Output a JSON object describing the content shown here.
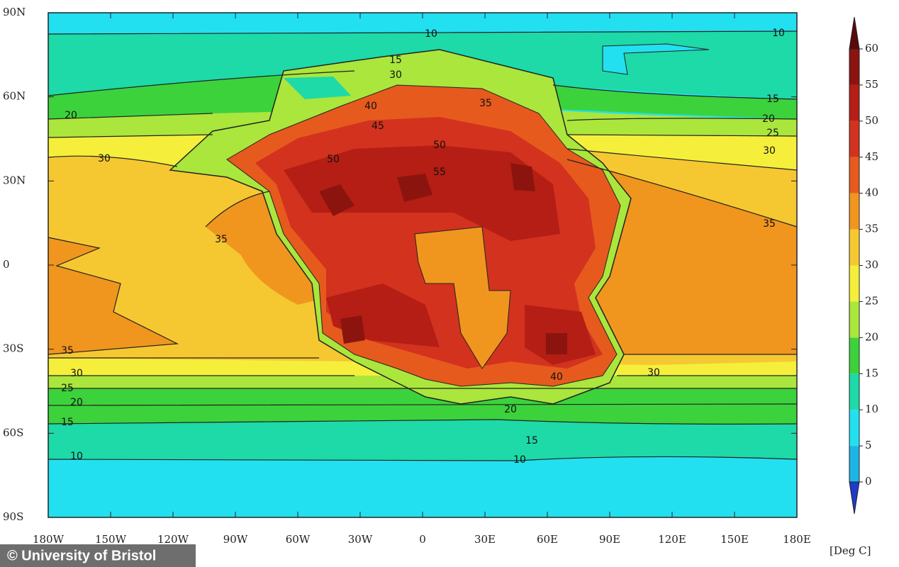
{
  "map": {
    "lat_labels": [
      "90N",
      "60N",
      "30N",
      "0",
      "30S",
      "60S",
      "90S"
    ],
    "lon_labels": [
      "180W",
      "150W",
      "120W",
      "90W",
      "60W",
      "30W",
      "0",
      "30E",
      "60E",
      "90E",
      "120E",
      "150E",
      "180E"
    ],
    "contour_labels": [
      10,
      10,
      15,
      30,
      20,
      30,
      40,
      45,
      50,
      50,
      55,
      35,
      15,
      20,
      25,
      30,
      35,
      35,
      35,
      30,
      25,
      20,
      15,
      10,
      30,
      20,
      15,
      10,
      40
    ],
    "colorbar": {
      "unit": "[Deg C]",
      "ticks": [
        0,
        5,
        10,
        15,
        20,
        25,
        30,
        35,
        40,
        45,
        50,
        55,
        60
      ],
      "colors": [
        "#1e3cc8",
        "#1eb4e6",
        "#22e0f0",
        "#1ed9a8",
        "#3cd23c",
        "#aae63c",
        "#f5ef3c",
        "#f5c832",
        "#f0961e",
        "#e65a1e",
        "#d2321e",
        "#b41e14",
        "#8c140f",
        "#5a0a0a"
      ]
    }
  },
  "credit": "© University of Bristol"
}
